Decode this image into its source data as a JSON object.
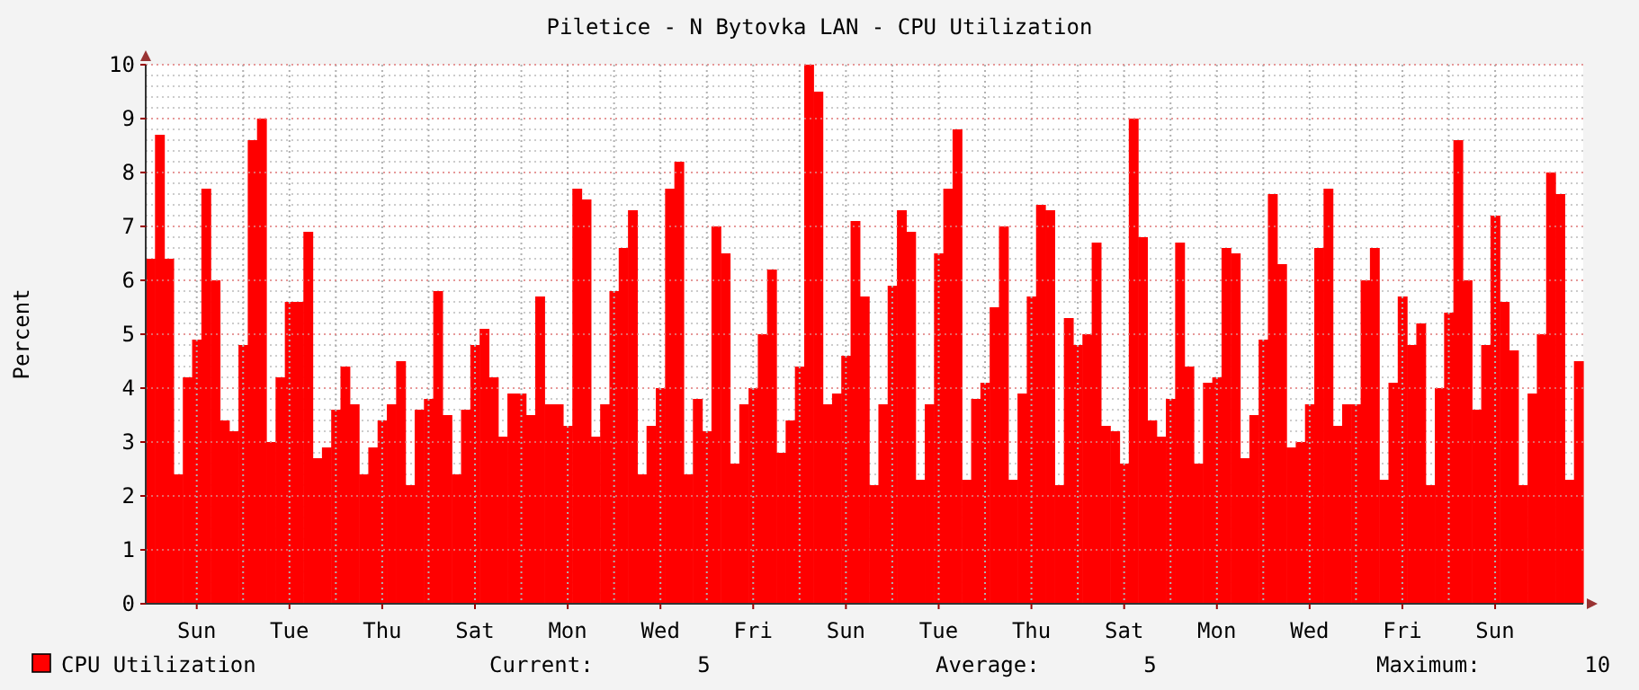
{
  "chart_data": {
    "type": "bar",
    "title": "Piletice - N Bytovka LAN - CPU Utilization",
    "ylabel": "Percent",
    "categories": [
      null,
      null,
      null,
      null,
      null,
      "Sun",
      null,
      null,
      null,
      null,
      null,
      null,
      null,
      null,
      null,
      "Tue",
      null,
      null,
      null,
      null,
      null,
      null,
      null,
      null,
      null,
      "Thu",
      null,
      null,
      null,
      null,
      null,
      null,
      null,
      null,
      null,
      "Sat",
      null,
      null,
      null,
      null,
      null,
      null,
      null,
      null,
      null,
      "Mon",
      null,
      null,
      null,
      null,
      null,
      null,
      null,
      null,
      null,
      "Wed",
      null,
      null,
      null,
      null,
      null,
      null,
      null,
      null,
      null,
      "Fri",
      null,
      null,
      null,
      null,
      null,
      null,
      null,
      null,
      null,
      "Sun",
      null,
      null,
      null,
      null,
      null,
      null,
      null,
      null,
      null,
      "Tue",
      null,
      null,
      null,
      null,
      null,
      null,
      null,
      null,
      null,
      "Thu",
      null,
      null,
      null,
      null,
      null,
      null,
      null,
      null,
      null,
      "Sat",
      null,
      null,
      null,
      null,
      null,
      null,
      null,
      null,
      null,
      "Mon",
      null,
      null,
      null,
      null,
      null,
      null,
      null,
      null,
      null,
      "Wed",
      null,
      null,
      null,
      null,
      null,
      null,
      null,
      null,
      null,
      "Fri",
      null,
      null,
      null,
      null,
      null,
      null,
      null,
      null,
      null,
      "Sun",
      null,
      null,
      null,
      null,
      null,
      null,
      null,
      null,
      null
    ],
    "series": [
      {
        "name": "CPU Utilization",
        "color": "#ff0000",
        "values": [
          6.4,
          8.7,
          6.4,
          2.4,
          4.2,
          4.9,
          7.7,
          6.0,
          3.4,
          3.2,
          4.8,
          8.6,
          9.0,
          3.0,
          4.2,
          5.6,
          5.6,
          6.9,
          2.7,
          2.9,
          3.6,
          4.4,
          3.7,
          2.4,
          2.9,
          3.4,
          3.7,
          4.5,
          2.2,
          3.6,
          3.8,
          5.8,
          3.5,
          2.4,
          3.6,
          4.8,
          5.1,
          4.2,
          3.1,
          3.9,
          3.9,
          3.5,
          5.7,
          3.7,
          3.7,
          3.3,
          7.7,
          7.5,
          3.1,
          3.7,
          5.8,
          6.6,
          7.3,
          2.4,
          3.3,
          4.0,
          7.7,
          8.2,
          2.4,
          3.8,
          3.2,
          7.0,
          6.5,
          2.6,
          3.7,
          4.0,
          5.0,
          6.2,
          2.8,
          3.4,
          4.4,
          10.0,
          9.5,
          3.7,
          3.9,
          4.6,
          7.1,
          5.7,
          2.2,
          3.7,
          5.9,
          7.3,
          6.9,
          2.3,
          3.7,
          6.5,
          7.7,
          8.8,
          2.3,
          3.8,
          4.1,
          5.5,
          7.0,
          2.3,
          3.9,
          5.7,
          7.4,
          7.3,
          2.2,
          5.3,
          4.8,
          5.0,
          6.7,
          3.3,
          3.2,
          2.6,
          9.0,
          6.8,
          3.4,
          3.1,
          3.8,
          6.7,
          4.4,
          2.6,
          4.1,
          4.2,
          6.6,
          6.5,
          2.7,
          3.5,
          4.9,
          7.6,
          6.3,
          2.9,
          3.0,
          3.7,
          6.6,
          7.7,
          3.3,
          3.7,
          3.7,
          6.0,
          6.6,
          2.3,
          4.1,
          5.7,
          4.8,
          5.2,
          2.2,
          4.0,
          5.4,
          8.6,
          6.0,
          3.6,
          4.8,
          7.2,
          5.6,
          4.7,
          2.2,
          3.9,
          5.0,
          8.0,
          7.6,
          2.3,
          4.5
        ]
      }
    ],
    "ylim": [
      0,
      10
    ],
    "yticks": [
      0,
      1,
      2,
      3,
      4,
      5,
      6,
      7,
      8,
      9,
      10
    ],
    "grid": true,
    "legend": "bottom",
    "annotations": [
      "Current:        5",
      "Average:        5",
      "Maximum:        10"
    ]
  }
}
